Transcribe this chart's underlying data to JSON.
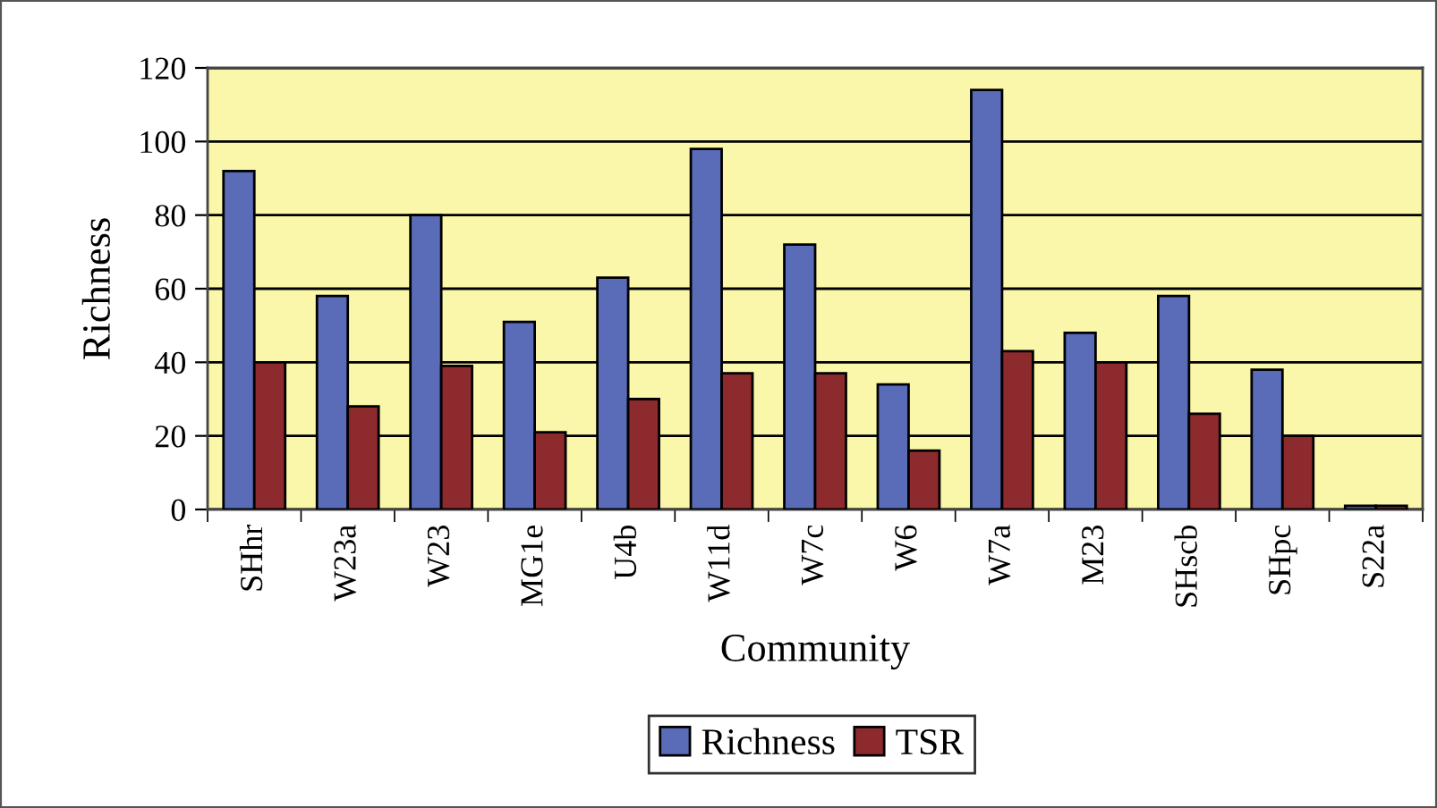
{
  "chart_data": {
    "type": "bar",
    "xlabel": "Community",
    "ylabel": "Richness",
    "categories": [
      "SHhr",
      "W23a",
      "W23",
      "MG1e",
      "U4b",
      "W11d",
      "W7c",
      "W6",
      "W7a",
      "M23",
      "SHscb",
      "SHpc",
      "S22a"
    ],
    "series": [
      {
        "name": "Richness",
        "color": "#5a6cb8",
        "values": [
          92,
          58,
          80,
          51,
          63,
          98,
          72,
          34,
          114,
          48,
          58,
          38,
          1
        ]
      },
      {
        "name": "TSR",
        "color": "#8c2a2e",
        "values": [
          40,
          28,
          39,
          21,
          30,
          37,
          37,
          16,
          43,
          40,
          26,
          20,
          1
        ]
      }
    ],
    "ylim": [
      0,
      120
    ],
    "yticks": [
      0,
      20,
      40,
      60,
      80,
      100,
      120
    ],
    "grid": "y",
    "legend": "bottom"
  }
}
